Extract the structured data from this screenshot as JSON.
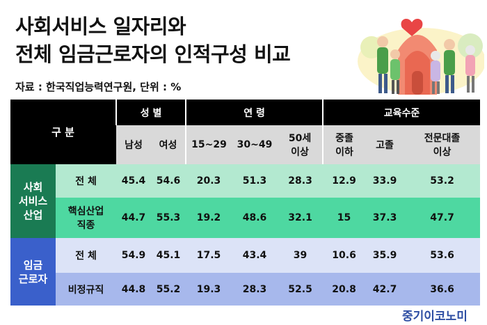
{
  "title_line1": "사회서비스 일자리와",
  "title_line2": "전체 임금근로자의 인적구성 비교",
  "source": "자료 : 한국직업능력연구원, 단위 : %",
  "header": {
    "division": "구 분",
    "gender": "성 별",
    "age": "연 령",
    "education": "교육수준",
    "male": "남성",
    "female": "여성",
    "age1": "15~29",
    "age2": "30~49",
    "age3a": "50세",
    "age3b": "이상",
    "edu1a": "중졸",
    "edu1b": "이하",
    "edu2": "고졸",
    "edu3a": "전문대졸",
    "edu3b": "이상"
  },
  "groups": {
    "social_a": "사회",
    "social_b": "서비스",
    "social_c": "산업",
    "wage_a": "임금",
    "wage_b": "근로자"
  },
  "rows": [
    {
      "label": "전 체",
      "values": [
        "45.4",
        "54.6",
        "20.3",
        "51.3",
        "28.3",
        "12.9",
        "33.9",
        "53.2"
      ]
    },
    {
      "label_a": "핵심산업",
      "label_b": "직종",
      "values": [
        "44.7",
        "55.3",
        "19.2",
        "48.6",
        "32.1",
        "15",
        "37.3",
        "47.7"
      ]
    },
    {
      "label": "전 체",
      "values": [
        "54.9",
        "45.1",
        "17.5",
        "43.4",
        "39",
        "10.6",
        "35.9",
        "53.6"
      ]
    },
    {
      "label": "비정규직",
      "values": [
        "44.8",
        "55.2",
        "19.3",
        "28.3",
        "52.5",
        "20.8",
        "42.7",
        "36.6"
      ]
    }
  ],
  "brand": "중기이코노미"
}
